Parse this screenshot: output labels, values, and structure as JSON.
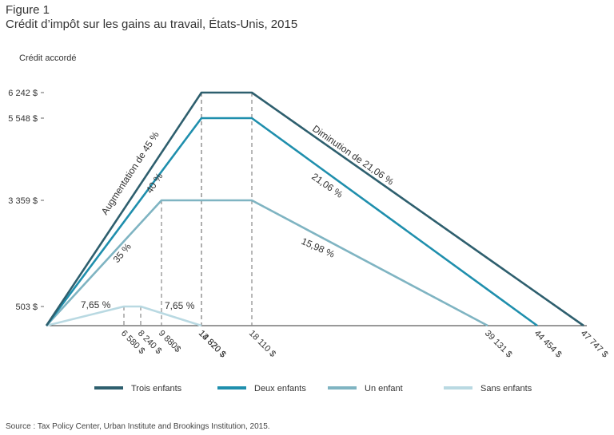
{
  "figure_label": "Figure 1",
  "title": "Crédit d’impôt sur les gains au travail, États-Unis, 2015",
  "source": "Source : Tax Policy Center, Urban Institute and Brookings Institution, 2015.",
  "chart_data": {
    "type": "line",
    "ylabel": "Crédit accordé",
    "y_ticks": [
      {
        "value": 6242,
        "label": "6 242 $"
      },
      {
        "value": 5548,
        "label": "5 548 $"
      },
      {
        "value": 3359,
        "label": "3 359 $"
      },
      {
        "value": 503,
        "label": "503 $"
      }
    ],
    "x_ticks": [
      {
        "value": 6580,
        "label": "6 580 $"
      },
      {
        "value": 8240,
        "label": "8 240 $"
      },
      {
        "value": 9880,
        "label": "9 880$"
      },
      {
        "value": 13870,
        "label": "13 870 $"
      },
      {
        "value": 14820,
        "label": "14 820 $"
      },
      {
        "value": 18110,
        "label": "18 110 $"
      },
      {
        "value": 39131,
        "label": "39 131 $"
      },
      {
        "value": 44454,
        "label": "44 454 $"
      },
      {
        "value": 47747,
        "label": "47 747 $"
      }
    ],
    "series": [
      {
        "name": "Trois enfants",
        "color": "#2e5f6e",
        "x": [
          0,
          13870,
          18110,
          47747
        ],
        "y": [
          0,
          6242,
          6242,
          0
        ]
      },
      {
        "name": "Deux enfants",
        "color": "#1f8fad",
        "x": [
          0,
          13870,
          18110,
          44454
        ],
        "y": [
          0,
          5548,
          5548,
          0
        ]
      },
      {
        "name": "Un enfant",
        "color": "#7fb4c2",
        "x": [
          0,
          9880,
          18110,
          39131
        ],
        "y": [
          0,
          3359,
          3359,
          0
        ]
      },
      {
        "name": "Sans enfants",
        "color": "#b9d9e2",
        "x": [
          0,
          6580,
          8240,
          14820
        ],
        "y": [
          0,
          503,
          503,
          0
        ]
      }
    ],
    "annotations": [
      {
        "text": "Augmentation de 45 %"
      },
      {
        "text": "40 %"
      },
      {
        "text": "35 %"
      },
      {
        "text": "7,65 %"
      },
      {
        "text": "7,65 %"
      },
      {
        "text": "Diminution de 21,06 %"
      },
      {
        "text": "21,06 %"
      },
      {
        "text": "15,98 %"
      }
    ],
    "legend_position": "bottom"
  }
}
